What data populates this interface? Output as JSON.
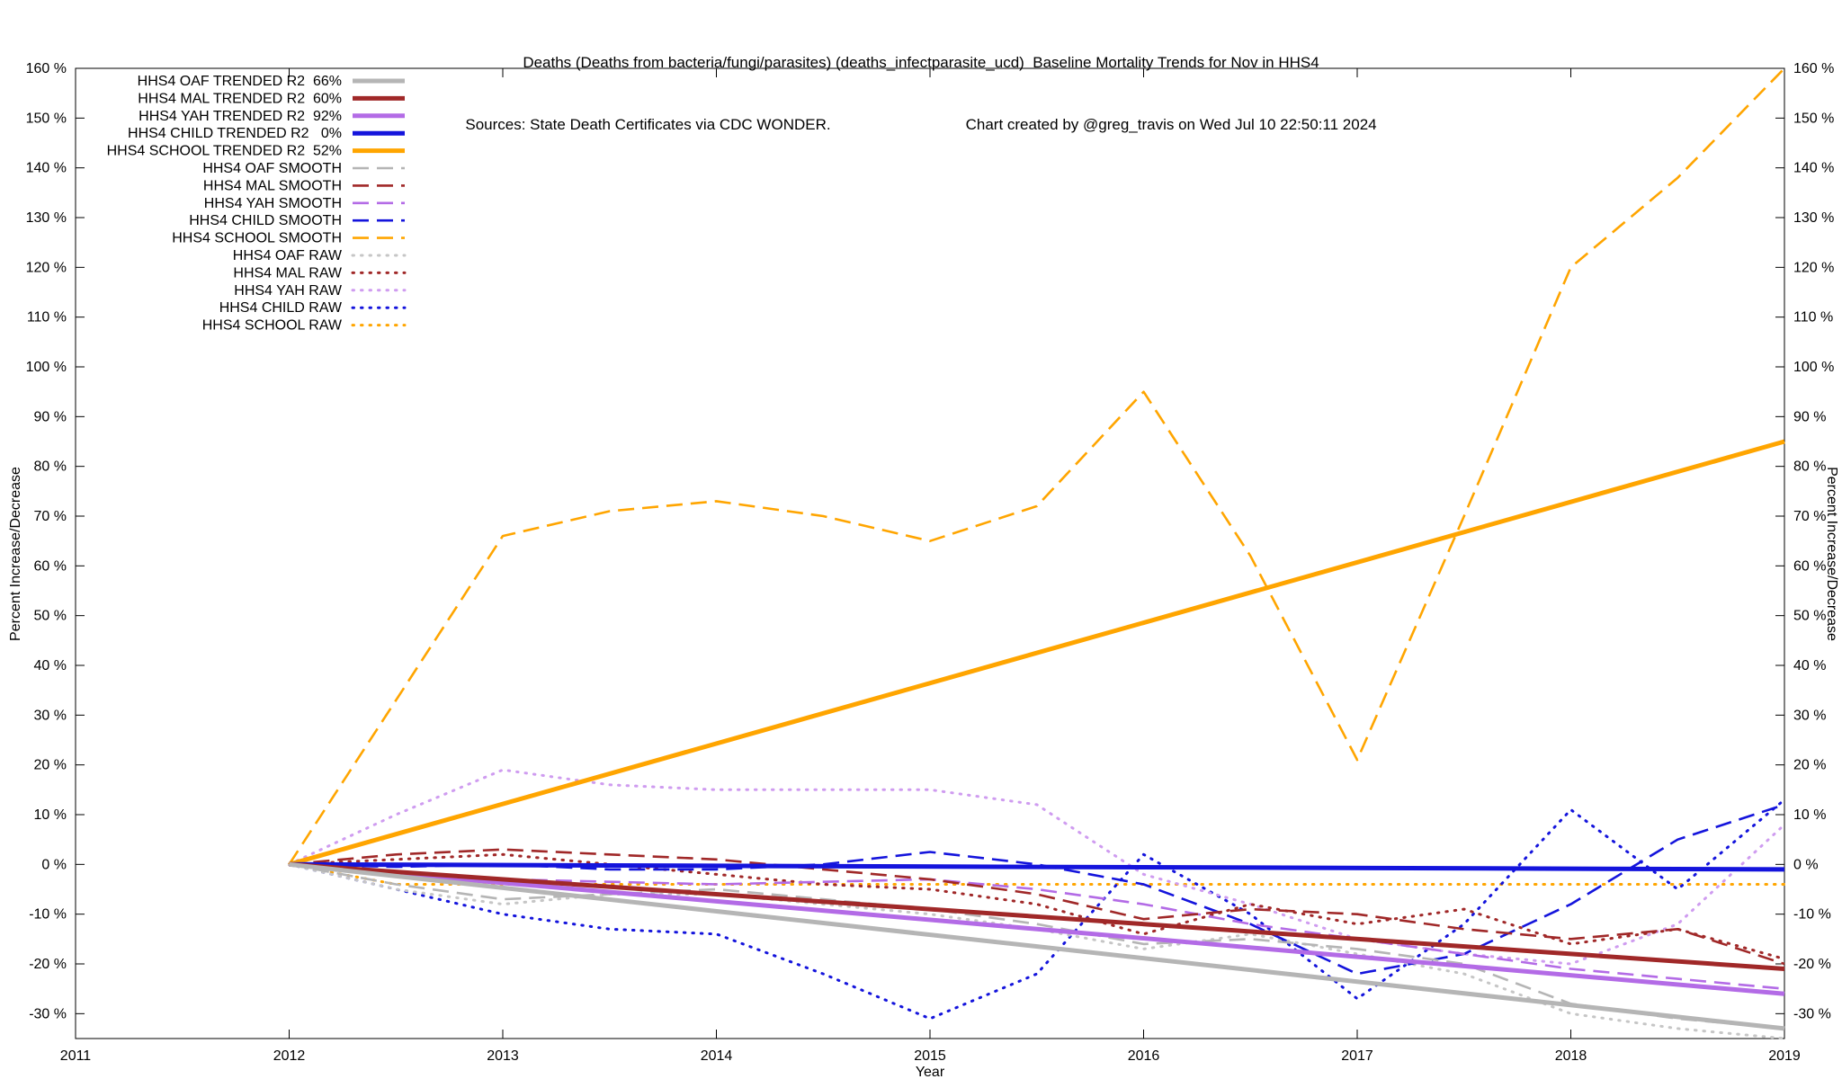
{
  "header": {
    "title_line1": "Deaths (Deaths from bacteria/fungi/parasites) (deaths_infectparasite_ucd)  Baseline Mortality Trends for Nov in HHS4",
    "title_line2_left": "Sources: State Death Certificates via CDC WONDER.",
    "title_line2_right": "Chart created by @greg_travis on Wed Jul 10 22:50:11 2024"
  },
  "axes": {
    "ylabel_left": "Percent Increase/Decrease",
    "ylabel_right": "Percent Increase/Decrease",
    "xlabel": "Year"
  },
  "chart_data": {
    "type": "line",
    "title": "Deaths (Deaths from bacteria/fungi/parasites) (deaths_infectparasite_ucd)  Baseline Mortality Trends for Nov in HHS4",
    "xlabel": "Year",
    "ylabel": "Percent Increase/Decrease",
    "xlim": [
      2011,
      2019
    ],
    "ylim": [
      -35,
      160
    ],
    "xticks": [
      2011,
      2012,
      2013,
      2014,
      2015,
      2016,
      2017,
      2018,
      2019
    ],
    "yticks": [
      -30,
      -20,
      -10,
      0,
      10,
      20,
      30,
      40,
      50,
      60,
      70,
      80,
      90,
      100,
      110,
      120,
      130,
      140,
      150,
      160
    ],
    "ytick_suffix": " %",
    "grid": false,
    "legend_position": "top-left",
    "series": [
      {
        "key": "oaf-trended",
        "label": "HHS4 OAF TRENDED R2  66%",
        "r2": 66,
        "color": "#b5b5b5",
        "style": "solid",
        "width": 5,
        "x": [
          2012,
          2019
        ],
        "values": [
          0,
          -33
        ]
      },
      {
        "key": "mal-trended",
        "label": "HHS4 MAL TRENDED R2  60%",
        "r2": 60,
        "color": "#a02828",
        "style": "solid",
        "width": 5,
        "x": [
          2012,
          2019
        ],
        "values": [
          0,
          -21
        ]
      },
      {
        "key": "yah-trended",
        "label": "HHS4 YAH TRENDED R2  92%",
        "r2": 92,
        "color": "#b36be6",
        "style": "solid",
        "width": 5,
        "x": [
          2012,
          2019
        ],
        "values": [
          0,
          -26
        ]
      },
      {
        "key": "child-trended",
        "label": "HHS4 CHILD TRENDED R2   0%",
        "r2": 0,
        "color": "#1414dc",
        "style": "solid",
        "width": 5,
        "x": [
          2012,
          2019
        ],
        "values": [
          0,
          -1
        ]
      },
      {
        "key": "school-trended",
        "label": "HHS4 SCHOOL TRENDED R2  52%",
        "r2": 52,
        "color": "#ffa500",
        "style": "solid",
        "width": 5,
        "x": [
          2012,
          2019
        ],
        "values": [
          0,
          85
        ]
      },
      {
        "key": "oaf-smooth",
        "label": "HHS4 OAF SMOOTH",
        "color": "#b5b5b5",
        "style": "dashed",
        "width": 2.6,
        "x": [
          2012,
          2012.5,
          2013,
          2013.5,
          2014,
          2014.5,
          2015,
          2015.5,
          2016,
          2016.5,
          2017,
          2017.5,
          2018,
          2018.5,
          2019
        ],
        "values": [
          0,
          -4,
          -7,
          -6,
          -5,
          -7,
          -9,
          -12,
          -16,
          -15,
          -17,
          -20,
          -28,
          -31,
          -33
        ]
      },
      {
        "key": "mal-smooth",
        "label": "HHS4 MAL SMOOTH",
        "color": "#a02828",
        "style": "dashed",
        "width": 2.6,
        "x": [
          2012,
          2012.5,
          2013,
          2013.5,
          2014,
          2014.5,
          2015,
          2015.5,
          2016,
          2016.5,
          2017,
          2017.5,
          2018,
          2018.5,
          2019
        ],
        "values": [
          0,
          2,
          3,
          2,
          1,
          -1,
          -3,
          -6,
          -11,
          -9,
          -10,
          -13,
          -15,
          -13,
          -20
        ]
      },
      {
        "key": "yah-smooth",
        "label": "HHS4 YAH SMOOTH",
        "color": "#b36be6",
        "style": "dashed",
        "width": 2.6,
        "x": [
          2012,
          2012.5,
          2013,
          2013.5,
          2014,
          2014.5,
          2015,
          2015.5,
          2016,
          2016.5,
          2017,
          2017.5,
          2018,
          2018.5,
          2019
        ],
        "values": [
          0,
          -2,
          -3,
          -3.5,
          -4,
          -3.5,
          -3,
          -5,
          -8,
          -12,
          -15,
          -18,
          -21,
          -23,
          -25
        ]
      },
      {
        "key": "child-smooth",
        "label": "HHS4 CHILD SMOOTH",
        "color": "#1414dc",
        "style": "dashed",
        "width": 2.6,
        "x": [
          2012,
          2012.5,
          2013,
          2013.5,
          2014,
          2014.5,
          2015,
          2015.5,
          2016,
          2016.5,
          2017,
          2017.5,
          2018,
          2018.5,
          2019
        ],
        "values": [
          0,
          -0.5,
          0,
          -1,
          -1,
          0,
          2.5,
          0,
          -4,
          -12,
          -22,
          -18,
          -8,
          5,
          12
        ]
      },
      {
        "key": "school-smooth",
        "label": "HHS4 SCHOOL SMOOTH",
        "color": "#ffa500",
        "style": "dashed",
        "width": 2.6,
        "x": [
          2012,
          2012.5,
          2013,
          2013.5,
          2014,
          2014.5,
          2015,
          2015.5,
          2016,
          2016.5,
          2017,
          2017.5,
          2018,
          2018.5,
          2019
        ],
        "values": [
          0,
          33,
          66,
          71,
          73,
          70,
          65,
          72,
          95,
          62,
          21,
          70,
          120,
          138,
          160
        ]
      },
      {
        "key": "oaf-raw",
        "label": "HHS4 OAF RAW",
        "color": "#c6c6c6",
        "style": "dotted",
        "width": 3,
        "x": [
          2012,
          2012.5,
          2013,
          2013.5,
          2014,
          2014.5,
          2015,
          2015.5,
          2016,
          2016.5,
          2017,
          2017.5,
          2018,
          2018.5,
          2019
        ],
        "values": [
          0,
          -5,
          -8,
          -6,
          -6,
          -8,
          -10,
          -13,
          -17,
          -14,
          -18,
          -22,
          -30,
          -33,
          -35
        ]
      },
      {
        "key": "mal-raw",
        "label": "HHS4 MAL RAW",
        "color": "#a02828",
        "style": "dotted",
        "width": 3,
        "x": [
          2012,
          2012.5,
          2013,
          2013.5,
          2014,
          2014.5,
          2015,
          2015.5,
          2016,
          2016.5,
          2017,
          2017.5,
          2018,
          2018.5,
          2019
        ],
        "values": [
          0,
          1,
          2,
          0,
          -2,
          -4,
          -5,
          -8,
          -14,
          -8,
          -12,
          -9,
          -16,
          -13,
          -19
        ]
      },
      {
        "key": "yah-raw",
        "label": "HHS4 YAH RAW",
        "color": "#cf9cf0",
        "style": "dotted",
        "width": 3,
        "x": [
          2012,
          2012.5,
          2013,
          2013.5,
          2014,
          2014.5,
          2015,
          2015.5,
          2016,
          2016.5,
          2017,
          2017.5,
          2018,
          2018.5,
          2019
        ],
        "values": [
          0,
          10,
          19,
          16,
          15,
          15,
          15,
          12,
          -2,
          -8,
          -15,
          -18,
          -20,
          -12,
          8
        ]
      },
      {
        "key": "child-raw",
        "label": "HHS4 CHILD RAW",
        "color": "#1414dc",
        "style": "dotted",
        "width": 3,
        "x": [
          2012,
          2012.5,
          2013,
          2013.5,
          2014,
          2014.5,
          2015,
          2015.5,
          2016,
          2016.5,
          2017,
          2017.5,
          2018,
          2018.5,
          2019
        ],
        "values": [
          0,
          -5,
          -10,
          -13,
          -14,
          -22,
          -31,
          -22,
          2,
          -10,
          -27,
          -12,
          11,
          -5,
          13
        ]
      },
      {
        "key": "school-raw",
        "label": "HHS4 SCHOOL RAW",
        "color": "#ffa500",
        "style": "dotted",
        "width": 3,
        "x": [
          2012,
          2012.5,
          2013,
          2013.5,
          2014,
          2014.5,
          2015,
          2015.5,
          2016,
          2016.5,
          2017,
          2017.5,
          2018,
          2018.5,
          2019
        ],
        "values": [
          0,
          -4,
          -4,
          -4,
          -4,
          -4,
          -4,
          -4,
          -4,
          -4,
          -4,
          -4,
          -4,
          -4,
          -4
        ]
      }
    ]
  }
}
